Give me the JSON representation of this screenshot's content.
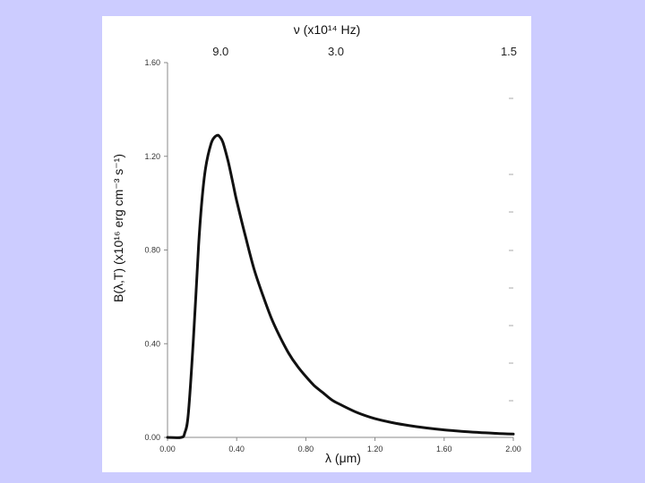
{
  "chart_data": {
    "type": "line",
    "xlabel": "λ (μm)",
    "ylabel": "B(λ,T) (x10¹⁶ erg cm⁻³ s⁻¹)",
    "top_axis_label": "ν (x10¹⁴ Hz)",
    "xlim": [
      0.0,
      2.0
    ],
    "ylim": [
      0.0,
      1.6
    ],
    "x_ticks": [
      "0.00",
      "0.40",
      "0.80",
      "1.20",
      "1.60",
      "2.00"
    ],
    "y_ticks": [
      "0.00",
      "0.40",
      "0.80",
      "1.20",
      "1.60"
    ],
    "top_ticks": [
      {
        "label": "9.0",
        "lambda": 0.333
      },
      {
        "label": "3.0",
        "lambda": 1.0
      },
      {
        "label": "1.5",
        "lambda": 2.0
      }
    ],
    "grid": false,
    "series": [
      {
        "x": [
          0.0,
          0.08,
          0.1,
          0.12,
          0.15,
          0.18,
          0.2,
          0.22,
          0.25,
          0.27,
          0.29,
          0.3,
          0.32,
          0.35,
          0.38,
          0.4,
          0.45,
          0.5,
          0.55,
          0.6,
          0.65,
          0.7,
          0.75,
          0.8,
          0.85,
          0.9,
          0.95,
          1.0,
          1.1,
          1.2,
          1.3,
          1.4,
          1.5,
          1.6,
          1.7,
          1.8,
          1.9,
          2.0
        ],
        "y": [
          0.0,
          0.0,
          0.02,
          0.1,
          0.42,
          0.82,
          1.02,
          1.15,
          1.25,
          1.28,
          1.29,
          1.285,
          1.26,
          1.18,
          1.08,
          1.01,
          0.86,
          0.72,
          0.61,
          0.51,
          0.43,
          0.36,
          0.305,
          0.26,
          0.22,
          0.19,
          0.16,
          0.14,
          0.105,
          0.08,
          0.063,
          0.05,
          0.04,
          0.032,
          0.026,
          0.021,
          0.017,
          0.014
        ]
      }
    ]
  }
}
